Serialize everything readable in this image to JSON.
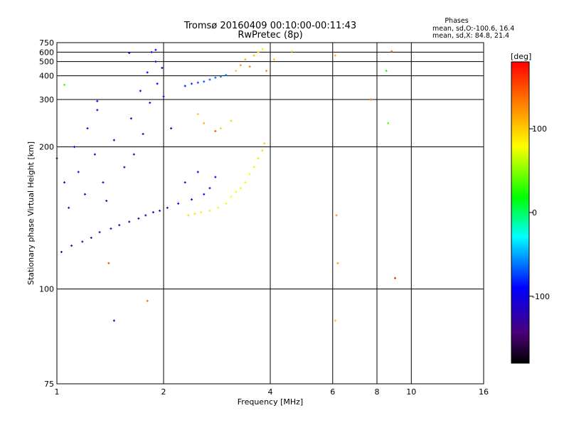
{
  "header": {
    "title": "Tromsø 20160409 00:10:00-00:11:43",
    "subtitle": "RwPretec (8p)"
  },
  "stats": {
    "heading": "Phases",
    "line_o": "mean, sd,O:-100.6, 16.4",
    "line_x": "mean, sd,X:  84.8, 21.4"
  },
  "colorbar": {
    "unit_label": "[deg]",
    "min": -180,
    "max": 180,
    "ticks": [
      {
        "value": 100,
        "label": "100"
      },
      {
        "value": 0,
        "label": "0"
      },
      {
        "value": -100,
        "label": "-100"
      }
    ]
  },
  "chart_data": {
    "type": "scatter",
    "title": "Tromsø 20160409 00:10:00-00:11:43",
    "subtitle": "RwPretec (8p)",
    "xlabel": "Frequency [MHz]",
    "ylabel": "Stationary phase Virtual Height [km]",
    "x_scale": "log",
    "y_scale": "reciprocal",
    "xlim": [
      1,
      16
    ],
    "ylim": [
      75,
      750
    ],
    "x_ticks": [
      {
        "value": 1,
        "label": "1"
      },
      {
        "value": 2,
        "label": "2"
      },
      {
        "value": 4,
        "label": "4"
      },
      {
        "value": 6,
        "label": "6"
      },
      {
        "value": 8,
        "label": "8"
      },
      {
        "value": 10,
        "label": "10"
      },
      {
        "value": 16,
        "label": "16"
      }
    ],
    "y_ticks": [
      {
        "value": 750,
        "label": "750"
      },
      {
        "value": 600,
        "label": "600"
      },
      {
        "value": 500,
        "label": "500"
      },
      {
        "value": 400,
        "label": "400"
      },
      {
        "value": 300,
        "label": "300"
      },
      {
        "value": 200,
        "label": "200"
      },
      {
        "value": 100,
        "label": "100"
      },
      {
        "value": 75,
        "label": "75"
      }
    ],
    "grid": true,
    "color_by": "phase (deg)",
    "series": [
      {
        "name": "O",
        "points": [
          {
            "x": 1.0,
            "y": 185,
            "phase": -115
          },
          {
            "x": 1.03,
            "y": 115,
            "phase": -135
          },
          {
            "x": 1.05,
            "y": 160,
            "phase": -110
          },
          {
            "x": 1.08,
            "y": 140,
            "phase": -120
          },
          {
            "x": 1.1,
            "y": 118,
            "phase": -130
          },
          {
            "x": 1.12,
            "y": 200,
            "phase": -105
          },
          {
            "x": 1.15,
            "y": 170,
            "phase": -112
          },
          {
            "x": 1.18,
            "y": 120,
            "phase": -128
          },
          {
            "x": 1.2,
            "y": 150,
            "phase": -118
          },
          {
            "x": 1.22,
            "y": 230,
            "phase": -100
          },
          {
            "x": 1.25,
            "y": 122,
            "phase": -126
          },
          {
            "x": 1.28,
            "y": 190,
            "phase": -108
          },
          {
            "x": 1.3,
            "y": 270,
            "phase": -98
          },
          {
            "x": 1.32,
            "y": 125,
            "phase": -124
          },
          {
            "x": 1.35,
            "y": 160,
            "phase": -115
          },
          {
            "x": 1.38,
            "y": 145,
            "phase": -120
          },
          {
            "x": 1.42,
            "y": 127,
            "phase": -122
          },
          {
            "x": 1.45,
            "y": 210,
            "phase": -104
          },
          {
            "x": 1.5,
            "y": 129,
            "phase": -120
          },
          {
            "x": 1.55,
            "y": 175,
            "phase": -110
          },
          {
            "x": 1.6,
            "y": 131,
            "phase": -118
          },
          {
            "x": 1.62,
            "y": 250,
            "phase": -100
          },
          {
            "x": 1.65,
            "y": 190,
            "phase": -106
          },
          {
            "x": 1.7,
            "y": 133,
            "phase": -116
          },
          {
            "x": 1.72,
            "y": 330,
            "phase": -95
          },
          {
            "x": 1.75,
            "y": 220,
            "phase": -102
          },
          {
            "x": 1.78,
            "y": 135,
            "phase": -114
          },
          {
            "x": 1.8,
            "y": 420,
            "phase": -92
          },
          {
            "x": 1.83,
            "y": 290,
            "phase": -97
          },
          {
            "x": 1.85,
            "y": 600,
            "phase": -90
          },
          {
            "x": 1.87,
            "y": 137,
            "phase": -112
          },
          {
            "x": 1.9,
            "y": 500,
            "phase": -92
          },
          {
            "x": 1.92,
            "y": 360,
            "phase": -95
          },
          {
            "x": 1.95,
            "y": 138,
            "phase": -110
          },
          {
            "x": 1.98,
            "y": 450,
            "phase": -94
          },
          {
            "x": 2.0,
            "y": 310,
            "phase": -96
          },
          {
            "x": 2.05,
            "y": 140,
            "phase": -108
          },
          {
            "x": 2.1,
            "y": 230,
            "phase": -100
          },
          {
            "x": 2.2,
            "y": 143,
            "phase": -105
          },
          {
            "x": 2.3,
            "y": 160,
            "phase": -102
          },
          {
            "x": 2.4,
            "y": 146,
            "phase": -100
          },
          {
            "x": 2.5,
            "y": 170,
            "phase": -98
          },
          {
            "x": 2.6,
            "y": 150,
            "phase": -96
          },
          {
            "x": 2.7,
            "y": 155,
            "phase": -95
          },
          {
            "x": 2.8,
            "y": 165,
            "phase": -94
          },
          {
            "x": 2.3,
            "y": 350,
            "phase": -85
          },
          {
            "x": 2.4,
            "y": 360,
            "phase": -80
          },
          {
            "x": 2.5,
            "y": 365,
            "phase": -75
          },
          {
            "x": 2.6,
            "y": 370,
            "phase": -72
          },
          {
            "x": 2.7,
            "y": 380,
            "phase": -68
          },
          {
            "x": 2.8,
            "y": 390,
            "phase": -65
          },
          {
            "x": 2.9,
            "y": 395,
            "phase": -60
          },
          {
            "x": 3.0,
            "y": 405,
            "phase": -55
          },
          {
            "x": 1.9,
            "y": 630,
            "phase": -90
          },
          {
            "x": 1.6,
            "y": 590,
            "phase": -95
          },
          {
            "x": 1.3,
            "y": 295,
            "phase": -98
          },
          {
            "x": 1.45,
            "y": 90,
            "phase": -110
          }
        ]
      },
      {
        "name": "X",
        "points": [
          {
            "x": 2.35,
            "y": 135,
            "phase": 95
          },
          {
            "x": 2.45,
            "y": 136,
            "phase": 90
          },
          {
            "x": 2.55,
            "y": 137,
            "phase": 88
          },
          {
            "x": 2.7,
            "y": 138,
            "phase": 86
          },
          {
            "x": 2.85,
            "y": 140,
            "phase": 84
          },
          {
            "x": 3.0,
            "y": 143,
            "phase": 82
          },
          {
            "x": 3.1,
            "y": 148,
            "phase": 80
          },
          {
            "x": 3.2,
            "y": 152,
            "phase": 78
          },
          {
            "x": 3.3,
            "y": 155,
            "phase": 76
          },
          {
            "x": 3.4,
            "y": 160,
            "phase": 75
          },
          {
            "x": 3.5,
            "y": 168,
            "phase": 80
          },
          {
            "x": 3.6,
            "y": 175,
            "phase": 85
          },
          {
            "x": 3.7,
            "y": 185,
            "phase": 90
          },
          {
            "x": 3.8,
            "y": 195,
            "phase": 95
          },
          {
            "x": 3.85,
            "y": 205,
            "phase": 100
          },
          {
            "x": 2.5,
            "y": 260,
            "phase": 100
          },
          {
            "x": 2.6,
            "y": 240,
            "phase": 110
          },
          {
            "x": 2.8,
            "y": 225,
            "phase": 150
          },
          {
            "x": 2.9,
            "y": 230,
            "phase": 60
          },
          {
            "x": 3.1,
            "y": 245,
            "phase": 95
          },
          {
            "x": 3.2,
            "y": 430,
            "phase": 100
          },
          {
            "x": 3.3,
            "y": 470,
            "phase": 120
          },
          {
            "x": 3.4,
            "y": 520,
            "phase": 110
          },
          {
            "x": 3.5,
            "y": 460,
            "phase": 130
          },
          {
            "x": 3.6,
            "y": 560,
            "phase": 105
          },
          {
            "x": 3.7,
            "y": 600,
            "phase": 95
          },
          {
            "x": 3.8,
            "y": 640,
            "phase": 90
          },
          {
            "x": 3.9,
            "y": 430,
            "phase": 125
          },
          {
            "x": 4.6,
            "y": 610,
            "phase": 90
          },
          {
            "x": 4.1,
            "y": 520,
            "phase": 100
          },
          {
            "x": 6.1,
            "y": 560,
            "phase": 110
          },
          {
            "x": 6.15,
            "y": 135,
            "phase": 120
          },
          {
            "x": 6.2,
            "y": 110,
            "phase": 115
          },
          {
            "x": 6.1,
            "y": 90,
            "phase": 100
          },
          {
            "x": 7.7,
            "y": 300,
            "phase": 150
          },
          {
            "x": 8.8,
            "y": 610,
            "phase": 140
          },
          {
            "x": 9.0,
            "y": 104,
            "phase": 170
          },
          {
            "x": 8.6,
            "y": 240,
            "phase": 40
          },
          {
            "x": 8.5,
            "y": 430,
            "phase": 10
          },
          {
            "x": 1.05,
            "y": 355,
            "phase": 30
          },
          {
            "x": 1.8,
            "y": 96,
            "phase": 140
          },
          {
            "x": 1.4,
            "y": 110,
            "phase": 150
          }
        ]
      }
    ]
  }
}
